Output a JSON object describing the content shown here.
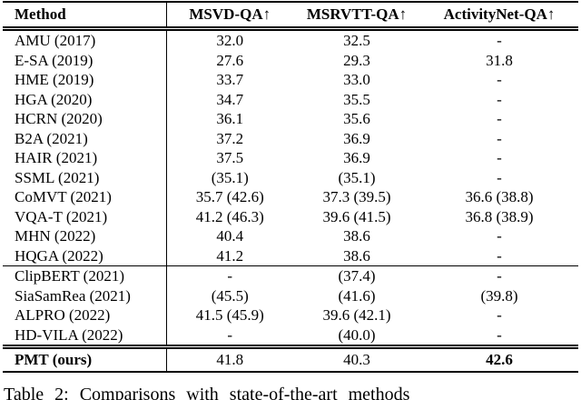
{
  "table": {
    "headers": [
      "Method",
      "MSVD-QA↑",
      "MSRVTT-QA↑",
      "ActivityNet-QA↑"
    ],
    "groups": [
      {
        "rows": [
          {
            "cells": [
              "AMU (2017)",
              "32.0",
              "32.5",
              "-"
            ]
          },
          {
            "cells": [
              "E-SA (2019)",
              "27.6",
              "29.3",
              "31.8"
            ]
          },
          {
            "cells": [
              "HME (2019)",
              "33.7",
              "33.0",
              "-"
            ]
          },
          {
            "cells": [
              "HGA (2020)",
              "34.7",
              "35.5",
              "-"
            ]
          },
          {
            "cells": [
              "HCRN (2020)",
              "36.1",
              "35.6",
              "-"
            ]
          },
          {
            "cells": [
              "B2A (2021)",
              "37.2",
              "36.9",
              "-"
            ]
          },
          {
            "cells": [
              "HAIR (2021)",
              "37.5",
              "36.9",
              "-"
            ]
          },
          {
            "cells": [
              "SSML (2021)",
              "(35.1)",
              "(35.1)",
              "-"
            ]
          },
          {
            "cells": [
              "CoMVT (2021)",
              "35.7 (42.6)",
              "37.3 (39.5)",
              "36.6 (38.8)"
            ]
          },
          {
            "cells": [
              "VQA-T (2021)",
              "41.2 (46.3)",
              "39.6 (41.5)",
              "36.8 (38.9)"
            ]
          },
          {
            "cells": [
              "MHN (2022)",
              "40.4",
              "38.6",
              "-"
            ]
          },
          {
            "cells": [
              "HQGA (2022)",
              "41.2",
              "38.6",
              "-"
            ]
          }
        ]
      },
      {
        "rows": [
          {
            "cells": [
              "ClipBERT (2021)",
              "-",
              "(37.4)",
              "-"
            ]
          },
          {
            "cells": [
              "SiaSamRea (2021)",
              "(45.5)",
              "(41.6)",
              "(39.8)"
            ]
          },
          {
            "cells": [
              "ALPRO (2022)",
              "41.5 (45.9)",
              "39.6 (42.1)",
              "-"
            ]
          },
          {
            "cells": [
              "HD-VILA (2022)",
              "-",
              "(40.0)",
              "-"
            ]
          }
        ]
      },
      {
        "rows": [
          {
            "cells": [
              "PMT (ours)",
              "41.8",
              "40.3",
              "42.6"
            ],
            "bold": [
              0,
              3
            ]
          }
        ]
      }
    ]
  },
  "caption": {
    "text": "Table 2: Comparisons with state-of-the-art methods"
  }
}
